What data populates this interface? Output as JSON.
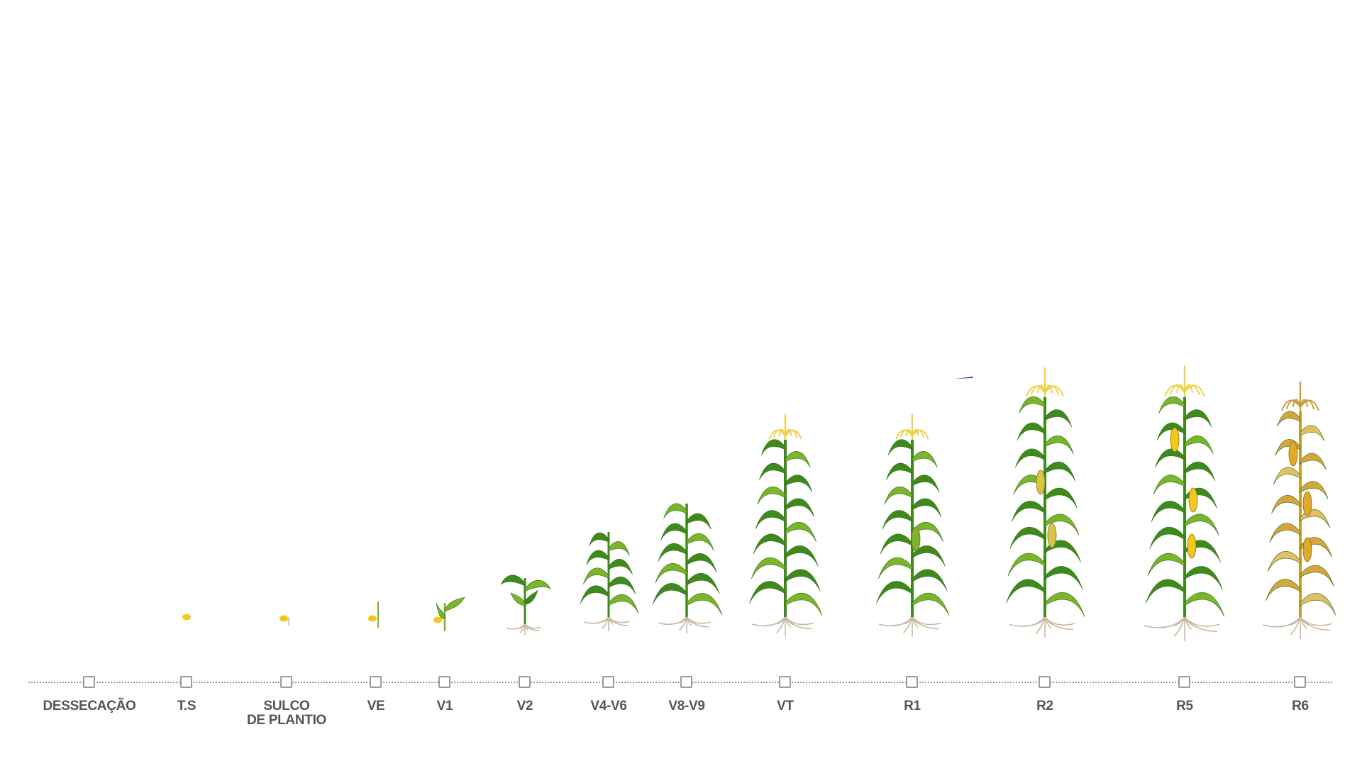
{
  "colors": {
    "background": "#ffffff",
    "timeline": "#9a9a9a",
    "label": "#555555",
    "leaf_green": "#3f8a1c",
    "leaf_light": "#7ab52b",
    "tassel": "#f0d24a",
    "seed": "#f2c919",
    "root": "#c9b8a0",
    "dry_leaf": "#d4a63c",
    "accent_mark": "#3a3aa0"
  },
  "stages": [
    {
      "id": "dessecacao",
      "label": "DESSECAÇÃO",
      "label2": "",
      "plant": "none"
    },
    {
      "id": "ts",
      "label": "T.S",
      "label2": "",
      "plant": "seed"
    },
    {
      "id": "sulco",
      "label": "SULCO",
      "label2": "DE PLANTIO",
      "plant": "seed-sprout"
    },
    {
      "id": "ve",
      "label": "VE",
      "label2": "",
      "plant": "emergence"
    },
    {
      "id": "v1",
      "label": "V1",
      "label2": "",
      "plant": "v1"
    },
    {
      "id": "v2",
      "label": "V2",
      "label2": "",
      "plant": "v2"
    },
    {
      "id": "v4v6",
      "label": "V4-V6",
      "label2": "",
      "plant": "v4"
    },
    {
      "id": "v8v9",
      "label": "V8-V9",
      "label2": "",
      "plant": "v8"
    },
    {
      "id": "vt",
      "label": "VT",
      "label2": "",
      "plant": "vt"
    },
    {
      "id": "r1",
      "label": "R1",
      "label2": "",
      "plant": "r1"
    },
    {
      "id": "r2",
      "label": "R2",
      "label2": "",
      "plant": "r2"
    },
    {
      "id": "r5",
      "label": "R5",
      "label2": "",
      "plant": "r5"
    },
    {
      "id": "r6",
      "label": "R6",
      "label2": "",
      "plant": "r6"
    }
  ],
  "icons": {
    "marker": "square-checkbox-icon",
    "plant": "corn-plant-icon"
  }
}
